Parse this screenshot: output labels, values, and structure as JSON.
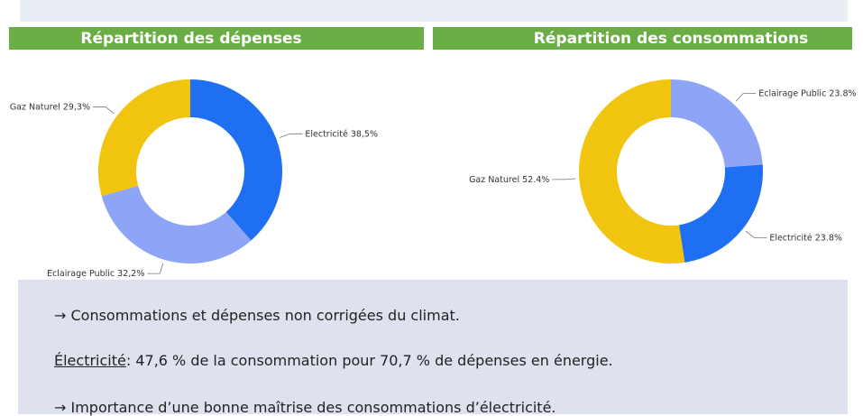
{
  "chart_data": [
    {
      "type": "pie",
      "title": "Répartition des dépenses",
      "categories": [
        "Electricité",
        "Eclairage Public",
        "Gaz Naturel"
      ],
      "values": [
        38.5,
        32.2,
        29.3
      ],
      "value_labels": [
        "38,5%",
        "32,2%",
        "29,3%"
      ],
      "colors": [
        "#1f6ff2",
        "#8da4f7",
        "#f0c40f"
      ]
    },
    {
      "type": "pie",
      "title": "Répartition des consommations",
      "categories": [
        "Eclairage Public",
        "Electricité",
        "Gaz Naturel"
      ],
      "values": [
        23.8,
        23.8,
        52.4
      ],
      "value_labels": [
        "23.8%",
        "23.8%",
        "52.4%"
      ],
      "colors": [
        "#8da4f7",
        "#1f6ff2",
        "#f0c40f"
      ]
    }
  ],
  "notes": {
    "line1": "→ Consommations et dépenses non corrigées du climat.",
    "line2_label": "Électricité",
    "line2_text": ": 47,6 % de la consommation pour 70,7 % de dépenses en énergie.",
    "line3": "→ Importance d’une bonne maîtrise des consommations d’électricité."
  }
}
